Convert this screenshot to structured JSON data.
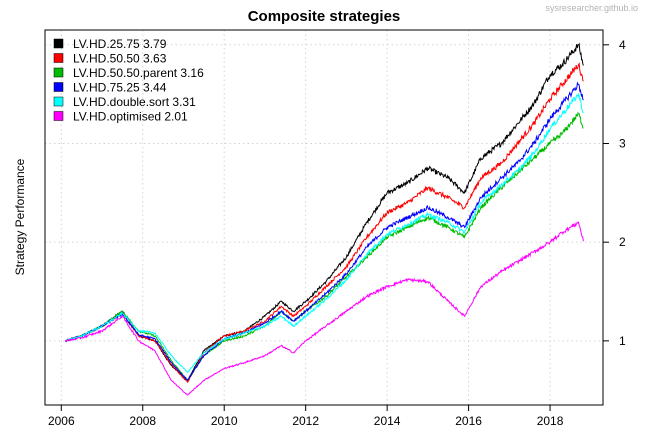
{
  "watermark": "sysresearcher.github.io",
  "chart_data": {
    "type": "line",
    "title": "Composite strategies",
    "xlabel": "",
    "ylabel": "Strategy Performance",
    "xlim": [
      2005.6,
      2019.3
    ],
    "ylim": [
      0.35,
      4.15
    ],
    "x_ticks": [
      2006,
      2008,
      2010,
      2012,
      2014,
      2016,
      2018
    ],
    "x_tick_labels": [
      "2006",
      "2008",
      "2010",
      "2012",
      "2014",
      "2016",
      "2018"
    ],
    "y_ticks": [
      1,
      2,
      3,
      4
    ],
    "y_tick_labels": [
      "1",
      "2",
      "3",
      "4"
    ],
    "y_axis_side": "right",
    "grid": true,
    "legend_position": "top-left",
    "series": [
      {
        "name": "LV.HD.25.75 3.79",
        "color": "#000000",
        "x": [
          2006.1,
          2006.5,
          2007.0,
          2007.5,
          2007.9,
          2008.3,
          2008.7,
          2009.1,
          2009.5,
          2010.0,
          2010.5,
          2011.0,
          2011.4,
          2011.7,
          2012.0,
          2012.5,
          2013.0,
          2013.5,
          2014.0,
          2014.5,
          2015.0,
          2015.5,
          2015.9,
          2016.3,
          2016.8,
          2017.2,
          2017.6,
          2018.0,
          2018.3,
          2018.5,
          2018.7,
          2018.82
        ],
        "y": [
          1.0,
          1.05,
          1.15,
          1.3,
          1.05,
          1.0,
          0.75,
          0.6,
          0.9,
          1.05,
          1.1,
          1.25,
          1.4,
          1.3,
          1.4,
          1.6,
          1.85,
          2.2,
          2.5,
          2.6,
          2.75,
          2.65,
          2.5,
          2.85,
          3.0,
          3.2,
          3.4,
          3.7,
          3.8,
          3.9,
          4.0,
          3.79
        ]
      },
      {
        "name": "LV.HD.50.50 3.63",
        "color": "#ff0000",
        "x": [
          2006.1,
          2006.5,
          2007.0,
          2007.5,
          2007.9,
          2008.3,
          2008.7,
          2009.1,
          2009.5,
          2010.0,
          2010.5,
          2011.0,
          2011.4,
          2011.7,
          2012.0,
          2012.5,
          2013.0,
          2013.5,
          2014.0,
          2014.5,
          2015.0,
          2015.5,
          2015.9,
          2016.3,
          2016.8,
          2017.2,
          2017.6,
          2018.0,
          2018.3,
          2018.5,
          2018.7,
          2018.82
        ],
        "y": [
          1.0,
          1.05,
          1.15,
          1.28,
          1.05,
          1.0,
          0.76,
          0.58,
          0.88,
          1.05,
          1.1,
          1.2,
          1.35,
          1.25,
          1.35,
          1.55,
          1.75,
          2.05,
          2.3,
          2.4,
          2.55,
          2.45,
          2.35,
          2.65,
          2.8,
          3.0,
          3.2,
          3.45,
          3.6,
          3.7,
          3.8,
          3.63
        ]
      },
      {
        "name": "LV.HD.50.50.parent 3.16",
        "color": "#00bb00",
        "x": [
          2006.1,
          2006.5,
          2007.0,
          2007.5,
          2007.9,
          2008.3,
          2008.7,
          2009.1,
          2009.5,
          2010.0,
          2010.5,
          2011.0,
          2011.4,
          2011.7,
          2012.0,
          2012.5,
          2013.0,
          2013.5,
          2014.0,
          2014.5,
          2015.0,
          2015.5,
          2015.9,
          2016.3,
          2016.8,
          2017.2,
          2017.6,
          2018.0,
          2018.3,
          2018.5,
          2018.7,
          2018.82
        ],
        "y": [
          1.0,
          1.05,
          1.15,
          1.3,
          1.1,
          1.05,
          0.8,
          0.6,
          0.85,
          1.0,
          1.05,
          1.15,
          1.3,
          1.2,
          1.3,
          1.45,
          1.65,
          1.85,
          2.05,
          2.15,
          2.25,
          2.15,
          2.05,
          2.35,
          2.55,
          2.7,
          2.85,
          3.0,
          3.1,
          3.2,
          3.3,
          3.16
        ]
      },
      {
        "name": "LV.HD.75.25 3.44",
        "color": "#0000ff",
        "x": [
          2006.1,
          2006.5,
          2007.0,
          2007.5,
          2007.9,
          2008.3,
          2008.7,
          2009.1,
          2009.5,
          2010.0,
          2010.5,
          2011.0,
          2011.4,
          2011.7,
          2012.0,
          2012.5,
          2013.0,
          2013.5,
          2014.0,
          2014.5,
          2015.0,
          2015.5,
          2015.9,
          2016.3,
          2016.8,
          2017.2,
          2017.6,
          2018.0,
          2018.3,
          2018.5,
          2018.7,
          2018.82
        ],
        "y": [
          1.0,
          1.05,
          1.15,
          1.27,
          1.06,
          1.02,
          0.78,
          0.6,
          0.85,
          1.02,
          1.08,
          1.18,
          1.3,
          1.2,
          1.3,
          1.48,
          1.68,
          1.95,
          2.15,
          2.25,
          2.35,
          2.25,
          2.15,
          2.45,
          2.65,
          2.8,
          3.0,
          3.25,
          3.4,
          3.5,
          3.6,
          3.44
        ]
      },
      {
        "name": "LV.HD.double.sort 3.31",
        "color": "#00ffff",
        "x": [
          2006.1,
          2006.5,
          2007.0,
          2007.5,
          2007.9,
          2008.3,
          2008.7,
          2009.1,
          2009.5,
          2010.0,
          2010.5,
          2011.0,
          2011.4,
          2011.7,
          2012.0,
          2012.5,
          2013.0,
          2013.5,
          2014.0,
          2014.5,
          2015.0,
          2015.5,
          2015.9,
          2016.3,
          2016.8,
          2017.2,
          2017.6,
          2018.0,
          2018.3,
          2018.5,
          2018.7,
          2018.82
        ],
        "y": [
          1.0,
          1.05,
          1.15,
          1.28,
          1.1,
          1.08,
          0.85,
          0.68,
          0.88,
          1.02,
          1.08,
          1.15,
          1.25,
          1.15,
          1.25,
          1.42,
          1.62,
          1.88,
          2.08,
          2.18,
          2.28,
          2.2,
          2.1,
          2.4,
          2.58,
          2.72,
          2.9,
          3.15,
          3.3,
          3.4,
          3.5,
          3.31
        ]
      },
      {
        "name": "LV.HD.optimised 2.01",
        "color": "#ff00ff",
        "x": [
          2006.1,
          2006.5,
          2007.0,
          2007.5,
          2007.9,
          2008.3,
          2008.7,
          2009.1,
          2009.5,
          2010.0,
          2010.5,
          2011.0,
          2011.4,
          2011.7,
          2012.0,
          2012.5,
          2013.0,
          2013.5,
          2014.0,
          2014.5,
          2015.0,
          2015.5,
          2015.9,
          2016.3,
          2016.8,
          2017.2,
          2017.6,
          2018.0,
          2018.3,
          2018.5,
          2018.7,
          2018.82
        ],
        "y": [
          1.0,
          1.03,
          1.1,
          1.25,
          1.0,
          0.9,
          0.6,
          0.45,
          0.6,
          0.72,
          0.78,
          0.85,
          0.95,
          0.88,
          1.0,
          1.15,
          1.3,
          1.45,
          1.55,
          1.62,
          1.6,
          1.4,
          1.25,
          1.55,
          1.7,
          1.8,
          1.9,
          2.0,
          2.1,
          2.15,
          2.2,
          2.01
        ]
      }
    ]
  }
}
